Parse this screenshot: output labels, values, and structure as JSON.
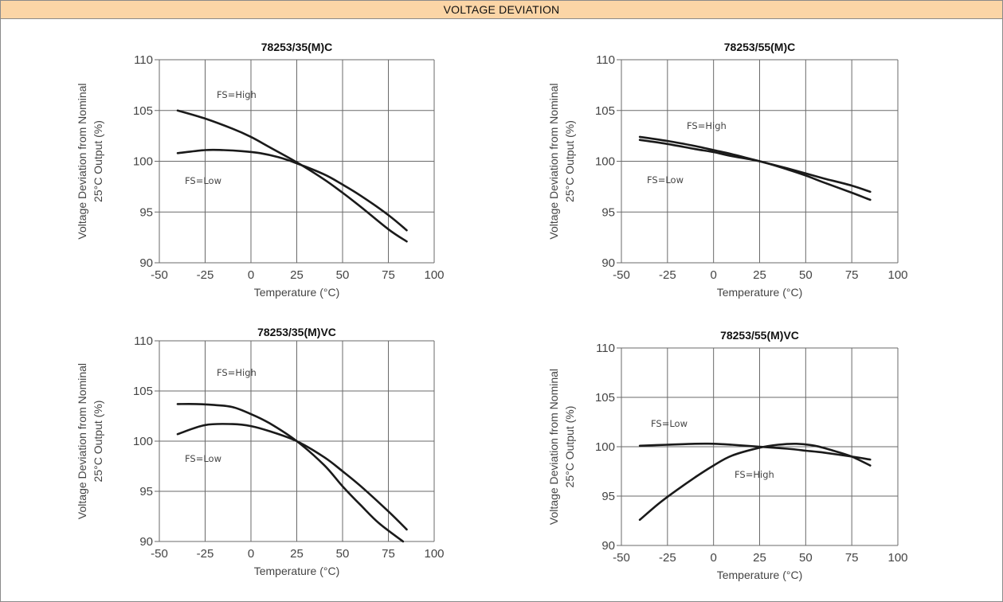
{
  "header": {
    "title": "VOLTAGE DEVIATION"
  },
  "chart_data": [
    {
      "type": "line",
      "title": "78253/35(M)C",
      "xlabel": "Temperature (°C)",
      "ylabel": [
        "Voltage Deviation from Nominal",
        "25°C Output (%)"
      ],
      "xlim": [
        -50,
        100
      ],
      "ylim": [
        90,
        110
      ],
      "xticks": [
        "-50",
        "-25",
        "0",
        "25",
        "50",
        "75",
        "100"
      ],
      "yticks": [
        "90",
        "95",
        "100",
        "105",
        "110"
      ],
      "grid": true,
      "series": [
        {
          "name": "FS=High",
          "x": [
            -40,
            -25,
            -10,
            0,
            10,
            25,
            40,
            50,
            60,
            75,
            85
          ],
          "y": [
            105,
            104.2,
            103.2,
            102.4,
            101.4,
            99.9,
            98.2,
            96.9,
            95.5,
            93.3,
            92.1
          ]
        },
        {
          "name": "FS=Low",
          "x": [
            -40,
            -25,
            -15,
            -5,
            5,
            15,
            25,
            40,
            50,
            60,
            75,
            85
          ],
          "y": [
            100.8,
            101.1,
            101.1,
            101,
            100.8,
            100.4,
            99.8,
            98.7,
            97.7,
            96.6,
            94.7,
            93.2
          ]
        }
      ]
    },
    {
      "type": "line",
      "title": "78253/55(M)C",
      "xlabel": "Temperature (°C)",
      "ylabel": [
        "Voltage Deviation from Nominal",
        "25°C Output (%)"
      ],
      "xlim": [
        -50,
        100
      ],
      "ylim": [
        90,
        110
      ],
      "xticks": [
        "-50",
        "-25",
        "0",
        "25",
        "50",
        "75",
        "100"
      ],
      "yticks": [
        "90",
        "95",
        "100",
        "105",
        "110"
      ],
      "grid": true,
      "series": [
        {
          "name": "FS=High",
          "x": [
            -40,
            -25,
            -10,
            0,
            10,
            25,
            40,
            50,
            60,
            75,
            85
          ],
          "y": [
            102.4,
            102,
            101.5,
            101.1,
            100.7,
            100,
            99.3,
            98.8,
            98.3,
            97.6,
            97
          ]
        },
        {
          "name": "FS=Low",
          "x": [
            -40,
            -25,
            -10,
            0,
            10,
            25,
            40,
            50,
            60,
            75,
            85
          ],
          "y": [
            102.1,
            101.7,
            101.2,
            100.9,
            100.5,
            100,
            99.2,
            98.6,
            97.9,
            96.9,
            96.2
          ]
        }
      ]
    },
    {
      "type": "line",
      "title": "78253/35(M)VC",
      "xlabel": "Temperature (°C)",
      "ylabel": [
        "Voltage Deviation from Nominal",
        "25°C Output (%)"
      ],
      "xlim": [
        -50,
        100
      ],
      "ylim": [
        90,
        110
      ],
      "xticks": [
        "-50",
        "-25",
        "0",
        "25",
        "50",
        "75",
        "100"
      ],
      "yticks": [
        "90",
        "95",
        "100",
        "105",
        "110"
      ],
      "grid": true,
      "series": [
        {
          "name": "FS=High",
          "x": [
            -40,
            -30,
            -20,
            -10,
            0,
            10,
            25,
            40,
            50,
            60,
            70,
            83
          ],
          "y": [
            103.7,
            103.7,
            103.6,
            103.4,
            102.7,
            101.8,
            100,
            97.6,
            95.5,
            93.6,
            91.8,
            90
          ]
        },
        {
          "name": "FS=Low",
          "x": [
            -40,
            -25,
            -10,
            0,
            10,
            25,
            40,
            50,
            60,
            75,
            85
          ],
          "y": [
            100.7,
            101.6,
            101.7,
            101.5,
            101,
            100,
            98.4,
            97,
            95.5,
            93,
            91.2
          ]
        }
      ]
    },
    {
      "type": "line",
      "title": "78253/55(M)VC",
      "xlabel": "Temperature (°C)",
      "ylabel": [
        "Voltage Deviation from Nominal",
        "25°C Output (%)"
      ],
      "xlim": [
        -50,
        100
      ],
      "ylim": [
        90,
        110
      ],
      "xticks": [
        "-50",
        "-25",
        "0",
        "25",
        "50",
        "75",
        "100"
      ],
      "yticks": [
        "90",
        "95",
        "100",
        "105",
        "110"
      ],
      "grid": true,
      "series": [
        {
          "name": "FS=Low",
          "x": [
            -40,
            -25,
            -10,
            0,
            10,
            25,
            40,
            50,
            60,
            75,
            85
          ],
          "y": [
            100.1,
            100.2,
            100.3,
            100.3,
            100.2,
            100,
            99.8,
            99.6,
            99.4,
            99,
            98.7
          ]
        },
        {
          "name": "FS=High",
          "x": [
            -40,
            -30,
            -20,
            -10,
            0,
            10,
            25,
            35,
            45,
            55,
            65,
            75,
            85
          ],
          "y": [
            92.6,
            94.2,
            95.6,
            96.9,
            98.1,
            99.1,
            99.9,
            100.2,
            100.3,
            100.1,
            99.6,
            99,
            98.1
          ]
        }
      ]
    }
  ]
}
